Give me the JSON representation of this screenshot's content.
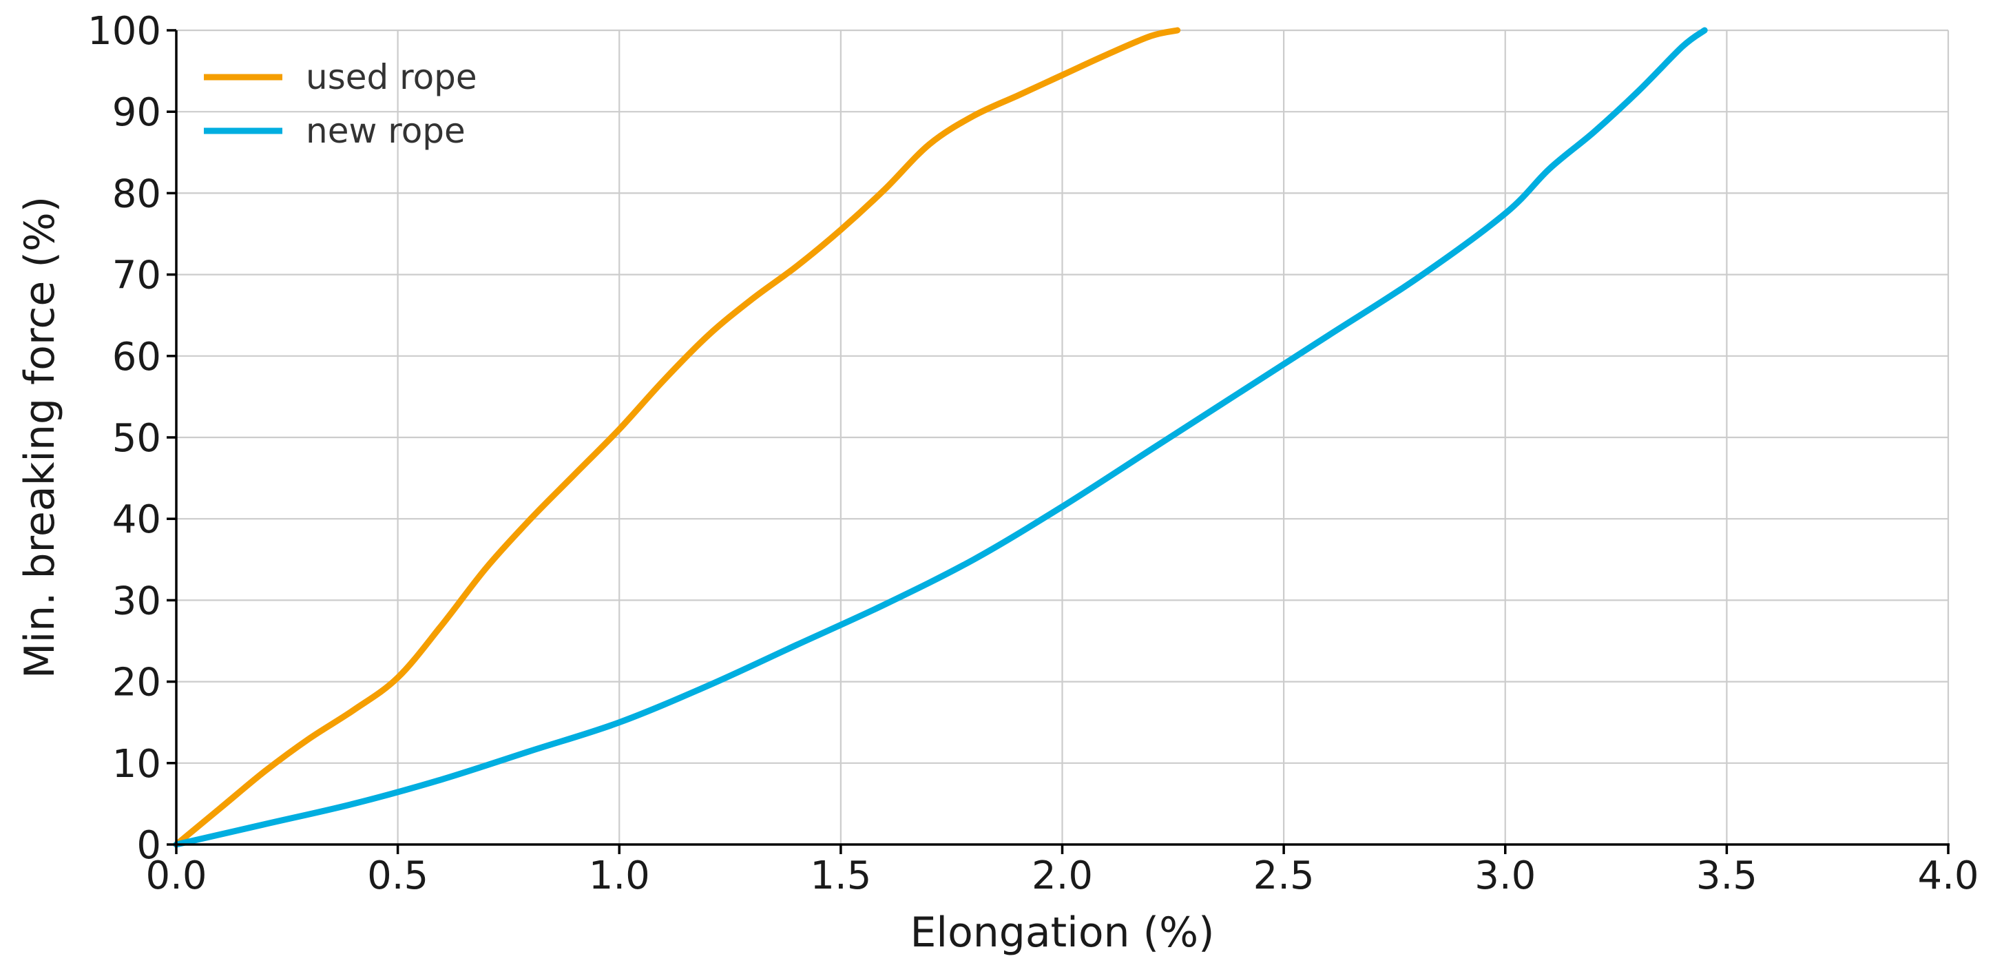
{
  "chart_data": {
    "type": "line",
    "title": "",
    "xlabel": "Elongation (%)",
    "ylabel": "Min. breaking force (%)",
    "xlim": [
      0,
      4
    ],
    "ylim": [
      0,
      100
    ],
    "x_ticks": [
      0,
      0.5,
      1,
      1.5,
      2,
      2.5,
      3,
      3.5,
      4
    ],
    "x_tick_labels": [
      "0.0",
      "0.5",
      "1.0",
      "1.5",
      "2.0",
      "2.5",
      "3.0",
      "3.5",
      "4.0"
    ],
    "y_ticks": [
      0,
      10,
      20,
      30,
      40,
      50,
      60,
      70,
      80,
      90,
      100
    ],
    "y_tick_labels": [
      "0",
      "10",
      "20",
      "30",
      "40",
      "50",
      "60",
      "70",
      "80",
      "90",
      "100"
    ],
    "grid": true,
    "legend": "top-left",
    "series": [
      {
        "name": "used rope",
        "color": "#f59e00",
        "x": [
          0,
          0.1,
          0.2,
          0.3,
          0.4,
          0.5,
          0.6,
          0.7,
          0.8,
          0.9,
          1.0,
          1.1,
          1.2,
          1.3,
          1.4,
          1.5,
          1.6,
          1.7,
          1.8,
          1.9,
          2.0,
          2.1,
          2.2,
          2.26
        ],
        "y": [
          0,
          4.5,
          9,
          13,
          16.5,
          20.5,
          27,
          34,
          40,
          45.5,
          51,
          57,
          62.5,
          67,
          71,
          75.5,
          80.5,
          86,
          89.5,
          92,
          94.5,
          97,
          99.3,
          100
        ]
      },
      {
        "name": "new rope",
        "color": "#00aee0",
        "x": [
          0,
          0.2,
          0.4,
          0.6,
          0.8,
          1.0,
          1.2,
          1.4,
          1.6,
          1.8,
          2.0,
          2.2,
          2.4,
          2.6,
          2.8,
          3.0,
          3.1,
          3.2,
          3.3,
          3.4,
          3.45
        ],
        "y": [
          0,
          2.5,
          5,
          8,
          11.5,
          15,
          19.5,
          24.5,
          29.5,
          35,
          41.5,
          48.5,
          55.5,
          62.5,
          69.5,
          77.5,
          83,
          87.5,
          92.5,
          98,
          100
        ]
      }
    ]
  }
}
